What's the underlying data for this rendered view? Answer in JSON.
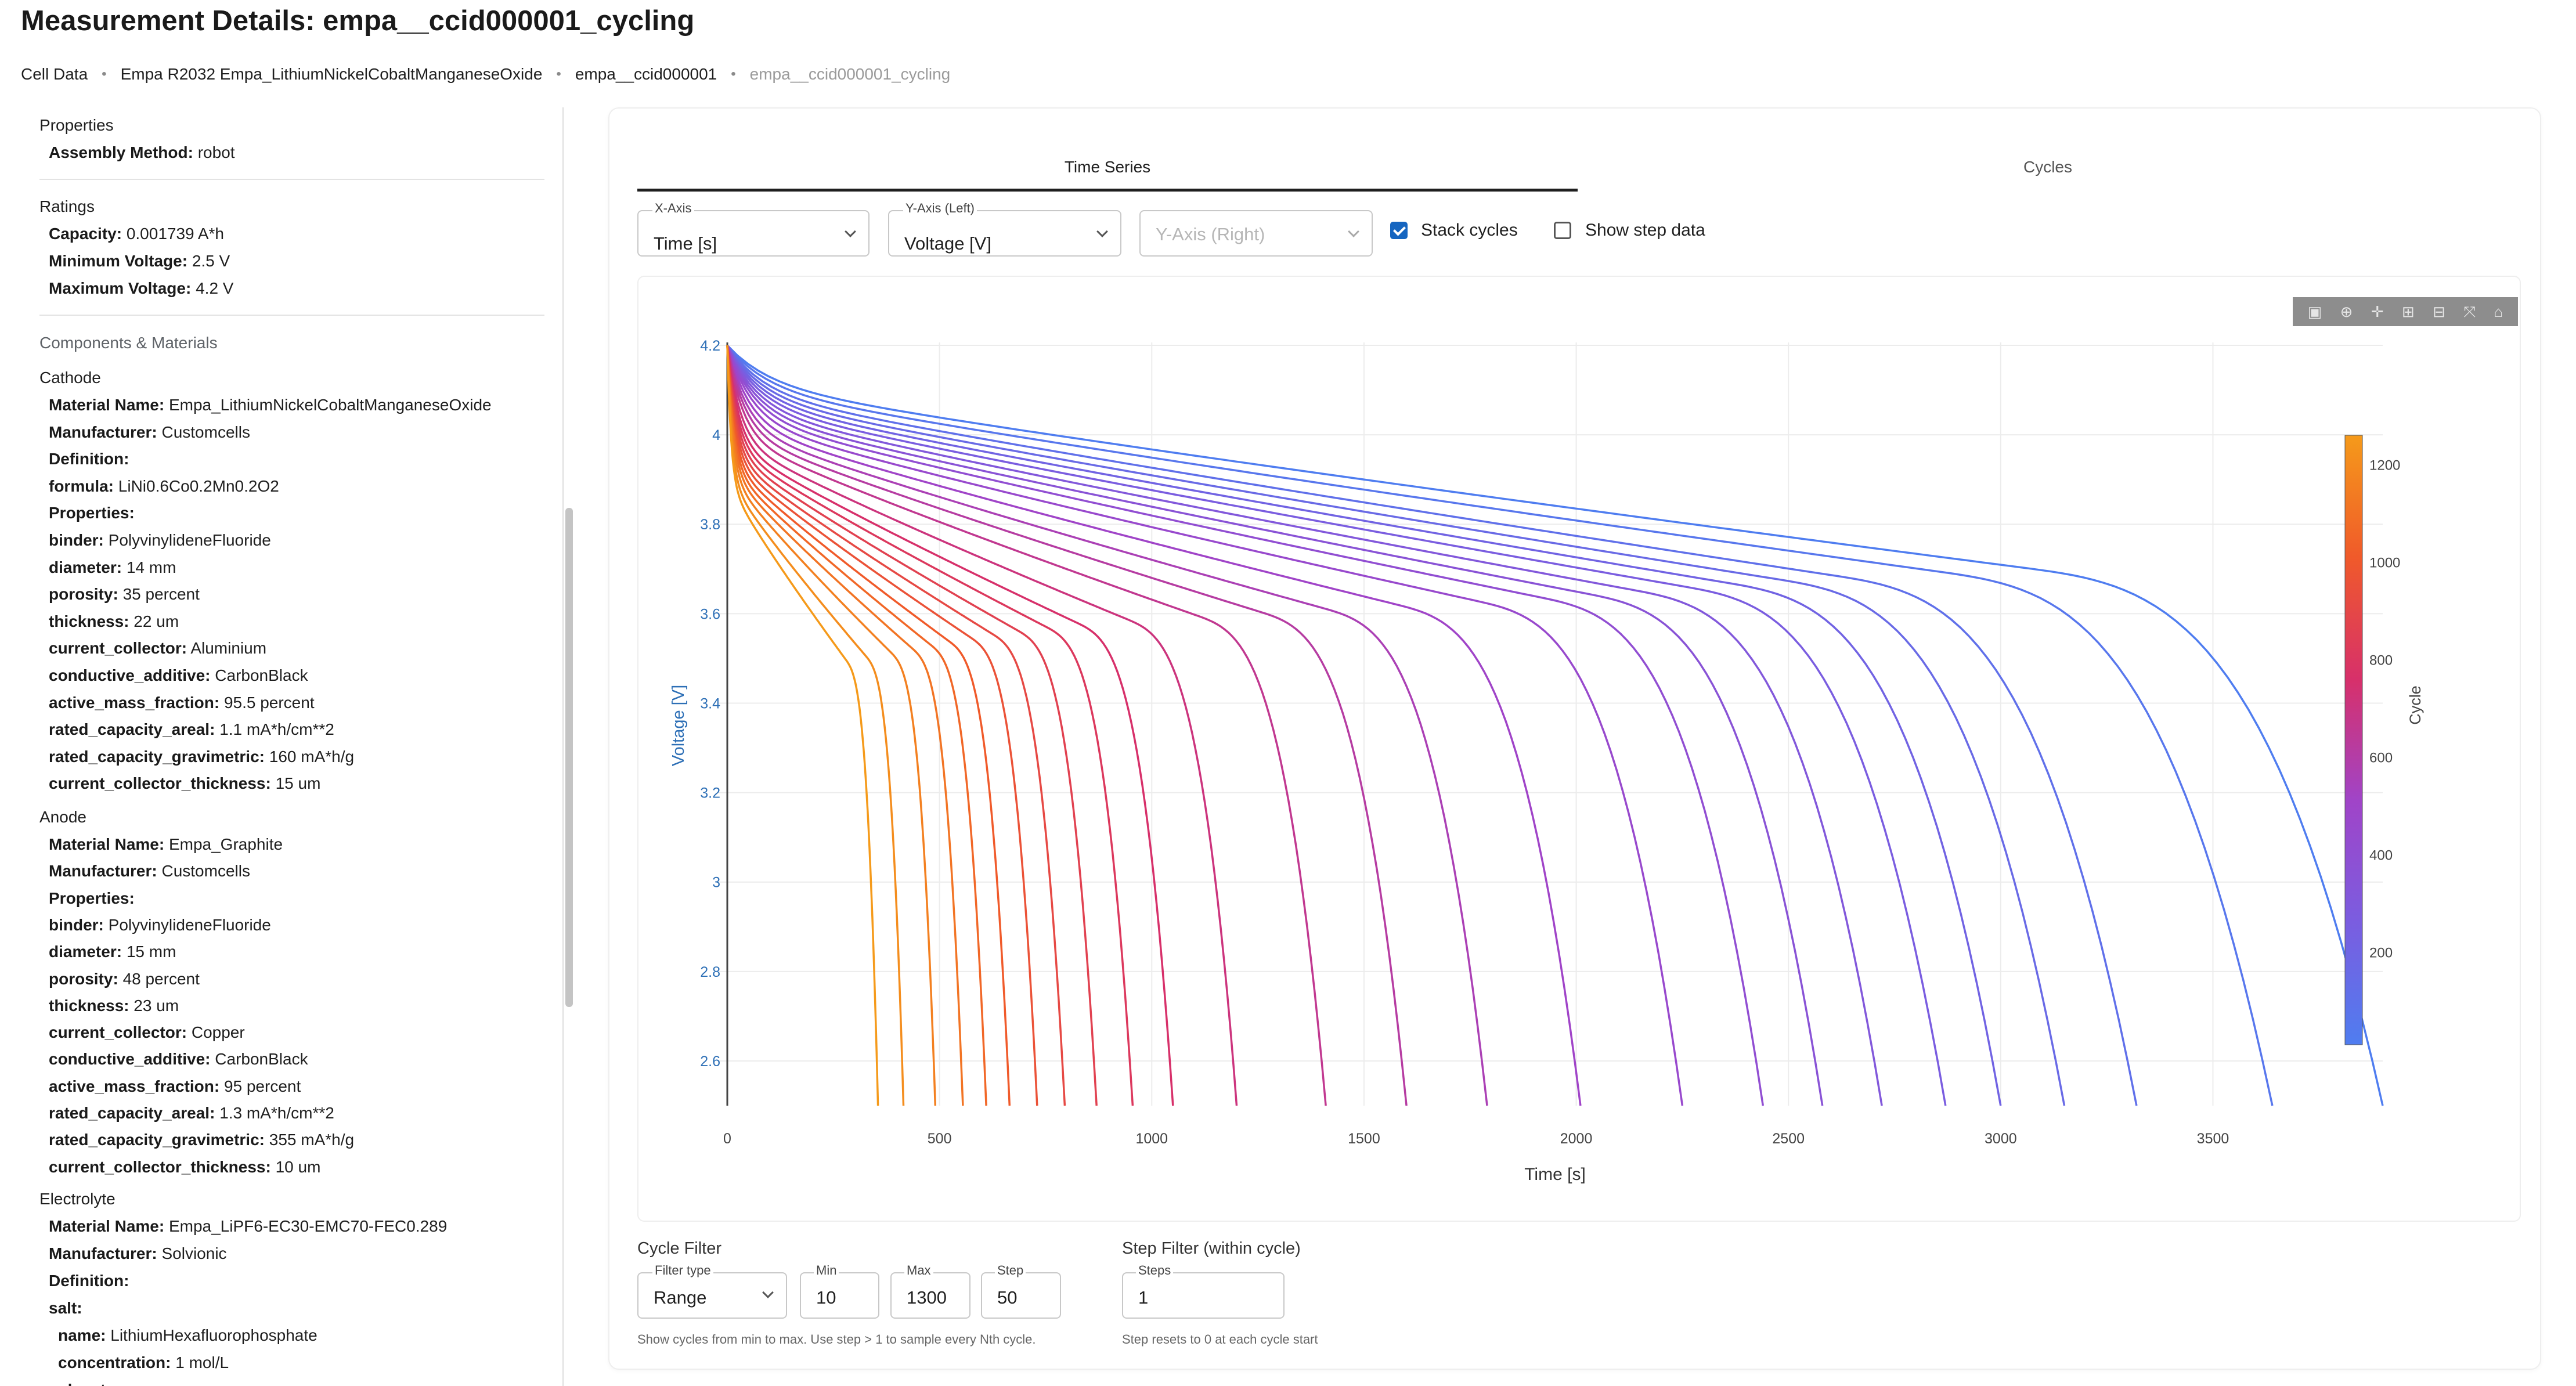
{
  "page": {
    "title": "Measurement Details: empa__ccid000001_cycling"
  },
  "breadcrumb": [
    "Cell Data",
    "Empa R2032 Empa_LithiumNickelCobaltManganeseOxide",
    "empa__ccid000001",
    "empa__ccid000001_cycling"
  ],
  "sidebar": {
    "properties_title": "Properties",
    "assembly_method": {
      "key": "Assembly Method:",
      "value": "robot"
    },
    "ratings_title": "Ratings",
    "ratings": [
      {
        "key": "Capacity:",
        "value": "0.001739 A*h"
      },
      {
        "key": "Minimum Voltage:",
        "value": "2.5 V"
      },
      {
        "key": "Maximum Voltage:",
        "value": "4.2 V"
      }
    ],
    "components_title": "Components & Materials",
    "cathode": {
      "title": "Cathode",
      "lines": [
        {
          "key": "Material Name:",
          "value": "Empa_LithiumNickelCobaltManganeseOxide"
        },
        {
          "key": "Manufacturer:",
          "value": "Customcells"
        },
        {
          "key": "Definition:",
          "value": ""
        },
        {
          "key": "formula:",
          "value": "LiNi0.6Co0.2Mn0.2O2"
        },
        {
          "key": "Properties:",
          "value": ""
        },
        {
          "key": "binder:",
          "value": "PolyvinylideneFluoride"
        },
        {
          "key": "diameter:",
          "value": "14 mm"
        },
        {
          "key": "porosity:",
          "value": "35 percent"
        },
        {
          "key": "thickness:",
          "value": "22 um"
        },
        {
          "key": "current_collector:",
          "value": "Aluminium"
        },
        {
          "key": "conductive_additive:",
          "value": "CarbonBlack"
        },
        {
          "key": "active_mass_fraction:",
          "value": "95.5 percent"
        },
        {
          "key": "rated_capacity_areal:",
          "value": "1.1 mA*h/cm**2"
        },
        {
          "key": "rated_capacity_gravimetric:",
          "value": "160 mA*h/g"
        },
        {
          "key": "current_collector_thickness:",
          "value": "15 um"
        }
      ]
    },
    "anode": {
      "title": "Anode",
      "lines": [
        {
          "key": "Material Name:",
          "value": "Empa_Graphite"
        },
        {
          "key": "Manufacturer:",
          "value": "Customcells"
        },
        {
          "key": "Properties:",
          "value": ""
        },
        {
          "key": "binder:",
          "value": "PolyvinylideneFluoride"
        },
        {
          "key": "diameter:",
          "value": "15 mm"
        },
        {
          "key": "porosity:",
          "value": "48 percent"
        },
        {
          "key": "thickness:",
          "value": "23 um"
        },
        {
          "key": "current_collector:",
          "value": "Copper"
        },
        {
          "key": "conductive_additive:",
          "value": "CarbonBlack"
        },
        {
          "key": "active_mass_fraction:",
          "value": "95 percent"
        },
        {
          "key": "rated_capacity_areal:",
          "value": "1.3 mA*h/cm**2"
        },
        {
          "key": "rated_capacity_gravimetric:",
          "value": "355 mA*h/g"
        },
        {
          "key": "current_collector_thickness:",
          "value": "10 um"
        }
      ]
    },
    "electrolyte": {
      "title": "Electrolyte",
      "lines": [
        {
          "key": "Material Name:",
          "value": "Empa_LiPF6-EC30-EMC70-FEC0.289"
        },
        {
          "key": "Manufacturer:",
          "value": "Solvionic"
        },
        {
          "key": "Definition:",
          "value": ""
        },
        {
          "key": "salt:",
          "value": ""
        },
        {
          "key": "name:",
          "value": "LithiumHexafluorophosphate"
        },
        {
          "key": "concentration:",
          "value": "1 mol/L"
        },
        {
          "key": "solvents:",
          "value": ""
        }
      ]
    }
  },
  "tabs": [
    "Time Series",
    "Cycles"
  ],
  "controls": {
    "x_axis": {
      "label": "X-Axis",
      "value": "Time [s]"
    },
    "y_axis_left": {
      "label": "Y-Axis (Left)",
      "value": "Voltage [V]"
    },
    "y_axis_right": {
      "placeholder": "Y-Axis (Right)"
    },
    "stack_cycles": {
      "label": "Stack cycles",
      "checked": true
    },
    "show_step_data": {
      "label": "Show step data",
      "checked": false
    }
  },
  "modebar_icons": [
    "camera-icon",
    "zoom-icon",
    "pan-icon",
    "zoom-in-icon",
    "zoom-out-icon",
    "autoscale-icon",
    "reset-axes-icon"
  ],
  "chart_data": {
    "type": "line",
    "xlabel": "Time [s]",
    "ylabel": "Voltage [V]",
    "xlim": [
      0,
      3900
    ],
    "ylim": [
      2.5,
      4.2
    ],
    "xticks": [
      0,
      500,
      1000,
      1500,
      2000,
      2500,
      3000,
      3500
    ],
    "yticks": [
      2.6,
      2.8,
      3,
      3.2,
      3.4,
      3.6,
      3.8,
      4,
      4.2
    ],
    "colorbar": {
      "title": "Cycle",
      "range": [
        10,
        1260
      ],
      "ticks": [
        200,
        400,
        600,
        800,
        1000,
        1200
      ],
      "colors": [
        "#4f7df0",
        "#7a5de0",
        "#a044c8",
        "#d7306a",
        "#f05a2a",
        "#f59a1a"
      ]
    },
    "grid": true,
    "series": [
      {
        "cycle": 10,
        "end_time": 3900
      },
      {
        "cycle": 60,
        "end_time": 3640
      },
      {
        "cycle": 110,
        "end_time": 3320
      },
      {
        "cycle": 160,
        "end_time": 3150
      },
      {
        "cycle": 210,
        "end_time": 3000
      },
      {
        "cycle": 260,
        "end_time": 2870
      },
      {
        "cycle": 310,
        "end_time": 2720
      },
      {
        "cycle": 360,
        "end_time": 2580
      },
      {
        "cycle": 410,
        "end_time": 2440
      },
      {
        "cycle": 460,
        "end_time": 2250
      },
      {
        "cycle": 510,
        "end_time": 2010
      },
      {
        "cycle": 560,
        "end_time": 1790
      },
      {
        "cycle": 610,
        "end_time": 1600
      },
      {
        "cycle": 660,
        "end_time": 1410
      },
      {
        "cycle": 710,
        "end_time": 1200
      },
      {
        "cycle": 760,
        "end_time": 1050
      },
      {
        "cycle": 810,
        "end_time": 955
      },
      {
        "cycle": 860,
        "end_time": 870
      },
      {
        "cycle": 910,
        "end_time": 795
      },
      {
        "cycle": 960,
        "end_time": 730
      },
      {
        "cycle": 1010,
        "end_time": 665
      },
      {
        "cycle": 1060,
        "end_time": 610
      },
      {
        "cycle": 1110,
        "end_time": 555
      },
      {
        "cycle": 1160,
        "end_time": 490
      },
      {
        "cycle": 1210,
        "end_time": 415
      },
      {
        "cycle": 1260,
        "end_time": 355
      }
    ]
  },
  "cycle_filter": {
    "heading": "Cycle Filter",
    "filter_type": {
      "label": "Filter type",
      "value": "Range"
    },
    "min": {
      "label": "Min",
      "value": "10"
    },
    "max": {
      "label": "Max",
      "value": "1300"
    },
    "step": {
      "label": "Step",
      "value": "50"
    },
    "help": "Show cycles from min to max. Use step > 1 to sample every Nth cycle."
  },
  "step_filter": {
    "heading": "Step Filter (within cycle)",
    "steps": {
      "label": "Steps",
      "value": "1"
    },
    "help": "Step resets to 0 at each cycle start"
  }
}
